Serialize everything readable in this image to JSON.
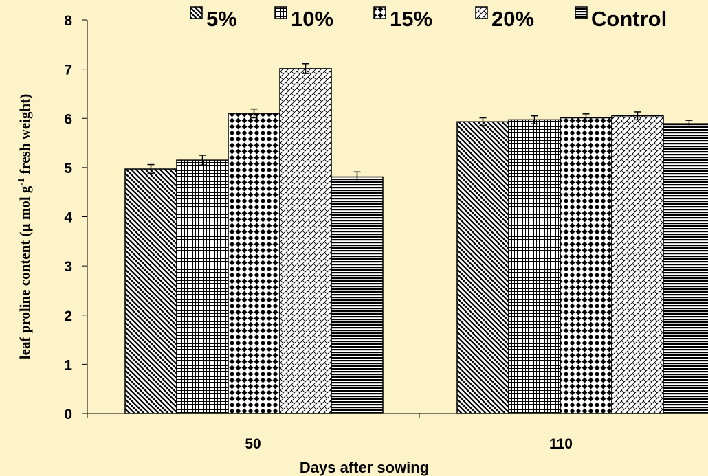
{
  "chart_data": {
    "type": "bar",
    "categories": [
      "50",
      "110"
    ],
    "series": [
      {
        "name": "5%",
        "values": [
          4.97,
          5.93
        ],
        "errors": [
          0.09,
          0.08
        ],
        "pattern": "diag-down"
      },
      {
        "name": "10%",
        "values": [
          5.15,
          5.97
        ],
        "errors": [
          0.1,
          0.08
        ],
        "pattern": "grid"
      },
      {
        "name": "15%",
        "values": [
          6.1,
          6.01
        ],
        "errors": [
          0.09,
          0.08
        ],
        "pattern": "dots"
      },
      {
        "name": "20%",
        "values": [
          7.01,
          6.05
        ],
        "errors": [
          0.1,
          0.08
        ],
        "pattern": "diag-cross"
      },
      {
        "name": "Control",
        "values": [
          4.81,
          5.89
        ],
        "errors": [
          0.1,
          0.07
        ],
        "pattern": "hlines"
      }
    ],
    "xlabel": "Days after sowing",
    "ylabel_parts": [
      "leaf proline content (µ mol g",
      "-1",
      " fresh weight)"
    ],
    "ylim": [
      0,
      8
    ],
    "yticks": [
      "0",
      "1",
      "2",
      "3",
      "4",
      "5",
      "6",
      "7",
      "8"
    ],
    "legend_position": "top",
    "grid": false,
    "colors": {
      "background": "#fdf3c9",
      "bar_fill": "#ffffff",
      "ink": "#000000"
    }
  }
}
